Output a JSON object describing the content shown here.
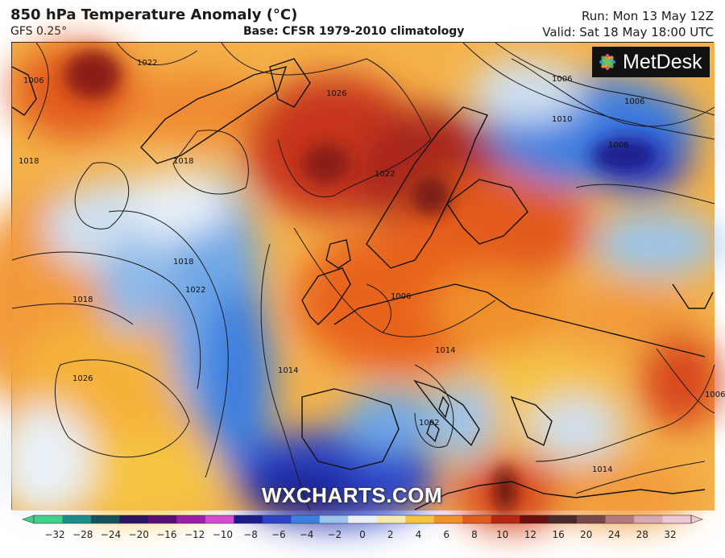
{
  "header": {
    "title": "850 hPa Temperature Anomaly (°C)",
    "model": "GFS 0.25°",
    "base": "Base: CFSR 1979-2010 climatology",
    "run": "Run: Mon 13 May 12Z",
    "valid": "Valid: Sat 18 May 18:00 UTC"
  },
  "branding": {
    "logo_text": "MetDesk",
    "watermark": "WXCHARTS.COM"
  },
  "isobar_labels": [
    "1022",
    "1006",
    "1026",
    "1018",
    "1018",
    "1022",
    "1018",
    "1018",
    "1022",
    "1026",
    "1006",
    "1006",
    "1010",
    "1006",
    "1014",
    "1002",
    "1014",
    "1006",
    "1006",
    "1014"
  ],
  "colorbar": {
    "ticks": [
      "−32",
      "−28",
      "−24",
      "−20",
      "−16",
      "−12",
      "−10",
      "−8",
      "−6",
      "−4",
      "−2",
      "0",
      "2",
      "4",
      "6",
      "8",
      "10",
      "12",
      "16",
      "20",
      "24",
      "28",
      "32"
    ],
    "colors": [
      "#3fd18a",
      "#1c8f8c",
      "#16535d",
      "#2b1560",
      "#5a0f78",
      "#9b1fa8",
      "#d44ad0",
      "#1b1b8c",
      "#2c43c8",
      "#3d7fe0",
      "#9bc4ec",
      "#e9f1f7",
      "#f7eab0",
      "#f5c542",
      "#f0902a",
      "#e25a1c",
      "#b82515",
      "#6e1010",
      "#4a2a2a",
      "#7a4848",
      "#b77a7a",
      "#d8a8b0",
      "#f0c8d4"
    ]
  }
}
